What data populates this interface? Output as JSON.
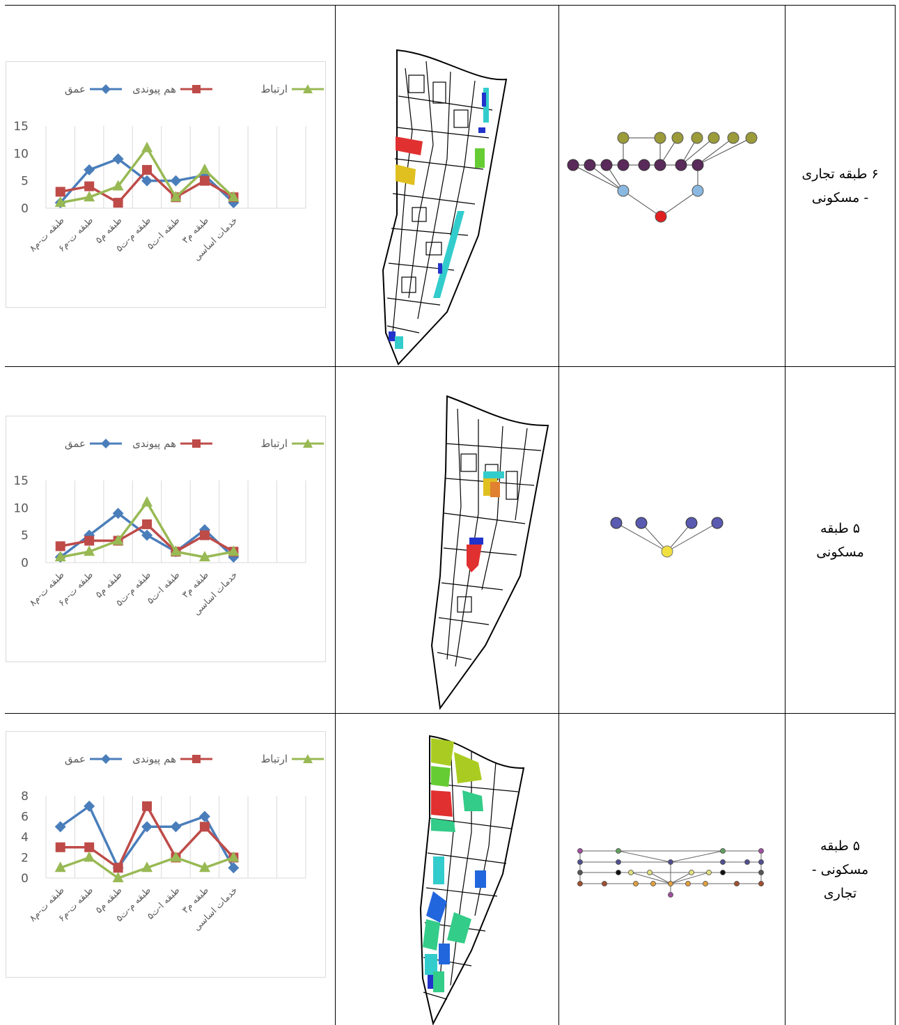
{
  "legend": {
    "depth": "عمق",
    "integration": "هم پیوندی",
    "connectivity": "ارتباط"
  },
  "colors": {
    "depth": "#4a7ebb",
    "integration": "#be4b48",
    "connectivity": "#98b954"
  },
  "rows": [
    {
      "label_line1": "۶ طبقه تجاری",
      "label_line2": "- مسکونی",
      "label_line3": "",
      "chart_data": {
        "type": "line",
        "categories": [
          "۸طبقه ت-م",
          "۶طبقه ت-م",
          "۵طبقه م",
          "۵طبقه م-ت",
          "۵طبقه ا-ت",
          "۳طبقه م",
          "خدمات اساسی"
        ],
        "series": [
          {
            "name": "عمق",
            "values": [
              1,
              7,
              9,
              5,
              5,
              6,
              1
            ]
          },
          {
            "name": "هم پیوندی",
            "values": [
              3,
              4,
              1,
              7,
              2,
              5,
              2
            ]
          },
          {
            "name": "ارتباط",
            "values": [
              1,
              2,
              4,
              11,
              2,
              7,
              2
            ]
          }
        ],
        "yticks": [
          "15",
          "10",
          "5",
          "0"
        ],
        "ylim": [
          0,
          15
        ]
      }
    },
    {
      "label_line1": "۵ طبقه",
      "label_line2": "مسکونی",
      "label_line3": "",
      "chart_data": {
        "type": "line",
        "categories": [
          "۸طبقه ت-م",
          "۶طبقه ت-م",
          "۵طبقه م",
          "۵طبقه م-ت",
          "۵طبقه ا-ت",
          "۳طبقه م",
          "خدمات اساسی"
        ],
        "series": [
          {
            "name": "عمق",
            "values": [
              1,
              5,
              9,
              5,
              2,
              6,
              1
            ]
          },
          {
            "name": "هم پیوندی",
            "values": [
              3,
              4,
              4,
              7,
              2,
              5,
              2
            ]
          },
          {
            "name": "ارتباط",
            "values": [
              1,
              2,
              4,
              11,
              2,
              1,
              2
            ]
          }
        ],
        "yticks": [
          "15",
          "10",
          "5",
          "0"
        ],
        "ylim": [
          0,
          15
        ]
      }
    },
    {
      "label_line1": "۵ طبقه",
      "label_line2": "مسکونی -",
      "label_line3": "تجاری",
      "chart_data": {
        "type": "line",
        "categories": [
          "۸طبقه ت-م",
          "۶طبقه ت-م",
          "۵طبقه م",
          "۵طبقه م-ت",
          "۵طبقه ا-ت",
          "۳طبقه م",
          "خدمات اساسی"
        ],
        "series": [
          {
            "name": "عمق",
            "values": [
              5,
              7,
              1,
              5,
              5,
              6,
              1
            ]
          },
          {
            "name": "هم پیوندی",
            "values": [
              3,
              3,
              1,
              7,
              2,
              5,
              2
            ]
          },
          {
            "name": "ارتباط",
            "values": [
              1,
              2,
              0,
              1,
              2,
              1,
              2
            ]
          }
        ],
        "yticks": [
          "8",
          "6",
          "4",
          "2",
          "0"
        ],
        "ylim": [
          0,
          8
        ]
      }
    }
  ]
}
